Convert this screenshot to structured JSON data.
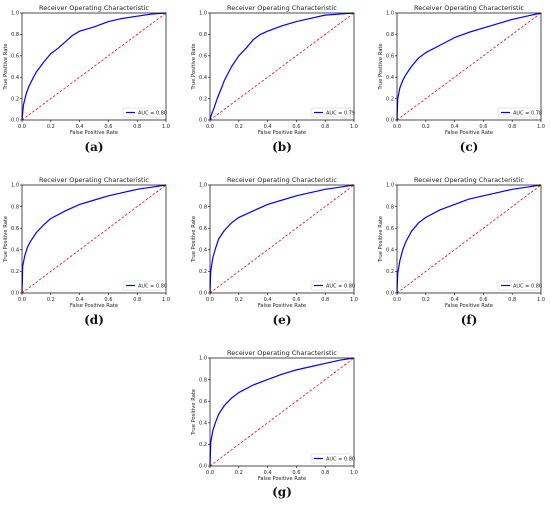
{
  "chart_data": [
    {
      "type": "line",
      "caption": "(a)",
      "title": "Receiver Operating Characteristic",
      "xlabel": "False Positive Rate",
      "ylabel": "True Positive Rate",
      "xlim": [
        0,
        1
      ],
      "ylim": [
        0,
        1
      ],
      "xticks": [
        "0.0",
        "0.2",
        "0.4",
        "0.6",
        "0.8",
        "1.0"
      ],
      "yticks": [
        "0.0",
        "0.2",
        "0.4",
        "0.6",
        "0.8",
        "1.0"
      ],
      "legend": "lower-right",
      "grid": false,
      "series": [
        {
          "name": "AUC = 0.80",
          "style": "solid",
          "color": "#0000ff",
          "x": [
            0,
            0.01,
            0.03,
            0.05,
            0.08,
            0.1,
            0.15,
            0.2,
            0.25,
            0.3,
            0.35,
            0.4,
            0.5,
            0.6,
            0.7,
            0.8,
            0.9,
            1.0
          ],
          "y": [
            0,
            0.14,
            0.25,
            0.32,
            0.4,
            0.45,
            0.54,
            0.62,
            0.67,
            0.73,
            0.79,
            0.83,
            0.87,
            0.92,
            0.95,
            0.97,
            0.99,
            1.0
          ]
        },
        {
          "name": "",
          "style": "dashed",
          "color": "#ff0000",
          "x": [
            0,
            1
          ],
          "y": [
            0,
            1
          ]
        }
      ]
    },
    {
      "type": "line",
      "caption": "(b)",
      "title": "Receiver Operating Characteristic",
      "xlabel": "False Positive Rate",
      "ylabel": "True Positive Rate",
      "xlim": [
        0,
        1
      ],
      "ylim": [
        0,
        1
      ],
      "xticks": [
        "0.0",
        "0.2",
        "0.4",
        "0.6",
        "0.8",
        "1.0"
      ],
      "yticks": [
        "0.0",
        "0.2",
        "0.4",
        "0.6",
        "0.8",
        "1.0"
      ],
      "legend": "lower-right",
      "grid": false,
      "series": [
        {
          "name": "AUC = 0.79",
          "style": "solid",
          "color": "#0000ff",
          "x": [
            0,
            0.01,
            0.03,
            0.05,
            0.08,
            0.1,
            0.15,
            0.2,
            0.25,
            0.3,
            0.35,
            0.4,
            0.5,
            0.6,
            0.7,
            0.8,
            0.9,
            1.0
          ],
          "y": [
            0,
            0.05,
            0.12,
            0.2,
            0.3,
            0.37,
            0.5,
            0.6,
            0.67,
            0.75,
            0.8,
            0.83,
            0.88,
            0.92,
            0.95,
            0.98,
            0.99,
            1.0
          ]
        },
        {
          "name": "",
          "style": "dashed",
          "color": "#ff0000",
          "x": [
            0,
            1
          ],
          "y": [
            0,
            1
          ]
        }
      ]
    },
    {
      "type": "line",
      "caption": "(c)",
      "title": "Receiver Operating Characteristic",
      "xlabel": "False Positive Rate",
      "ylabel": "True Positive Rate",
      "xlim": [
        0,
        1
      ],
      "ylim": [
        0,
        1
      ],
      "xticks": [
        "0.0",
        "0.2",
        "0.4",
        "0.6",
        "0.8",
        "1.0"
      ],
      "yticks": [
        "0.0",
        "0.2",
        "0.4",
        "0.6",
        "0.8",
        "1.0"
      ],
      "legend": "lower-right",
      "grid": false,
      "series": [
        {
          "name": "AUC = 0.78",
          "style": "solid",
          "color": "#0000ff",
          "x": [
            0,
            0.005,
            0.02,
            0.04,
            0.06,
            0.1,
            0.15,
            0.2,
            0.3,
            0.4,
            0.5,
            0.6,
            0.7,
            0.8,
            0.9,
            1.0
          ],
          "y": [
            0,
            0.2,
            0.3,
            0.37,
            0.42,
            0.5,
            0.58,
            0.63,
            0.7,
            0.77,
            0.82,
            0.86,
            0.9,
            0.94,
            0.97,
            1.0
          ]
        },
        {
          "name": "",
          "style": "dashed",
          "color": "#ff0000",
          "x": [
            0,
            1
          ],
          "y": [
            0,
            1
          ]
        }
      ]
    },
    {
      "type": "line",
      "caption": "(d)",
      "title": "Receiver Operating Characteristic",
      "xlabel": "False Positive Rate",
      "ylabel": "True Positive Rate",
      "xlim": [
        0,
        1
      ],
      "ylim": [
        0,
        1
      ],
      "xticks": [
        "0.0",
        "0.2",
        "0.4",
        "0.6",
        "0.8",
        "1.0"
      ],
      "yticks": [
        "0.0",
        "0.2",
        "0.4",
        "0.6",
        "0.8",
        "1.0"
      ],
      "legend": "lower-right",
      "grid": false,
      "series": [
        {
          "name": "AUC = 0.80",
          "style": "solid",
          "color": "#0000ff",
          "x": [
            0,
            0.005,
            0.02,
            0.04,
            0.06,
            0.1,
            0.15,
            0.2,
            0.3,
            0.4,
            0.5,
            0.6,
            0.7,
            0.8,
            0.9,
            1.0
          ],
          "y": [
            0,
            0.25,
            0.35,
            0.43,
            0.48,
            0.56,
            0.63,
            0.69,
            0.76,
            0.82,
            0.86,
            0.9,
            0.93,
            0.96,
            0.98,
            1.0
          ]
        },
        {
          "name": "",
          "style": "dashed",
          "color": "#ff0000",
          "x": [
            0,
            1
          ],
          "y": [
            0,
            1
          ]
        }
      ]
    },
    {
      "type": "line",
      "caption": "(e)",
      "title": "Receiver Operating Characteristic",
      "xlabel": "False Positive Rate",
      "ylabel": "True Positive Rate",
      "xlim": [
        0,
        1
      ],
      "ylim": [
        0,
        1
      ],
      "xticks": [
        "0.0",
        "0.2",
        "0.4",
        "0.6",
        "0.8",
        "1.0"
      ],
      "yticks": [
        "0.0",
        "0.2",
        "0.4",
        "0.6",
        "0.8",
        "1.0"
      ],
      "legend": "lower-right",
      "grid": false,
      "series": [
        {
          "name": "AUC = 0.80",
          "style": "solid",
          "color": "#0000ff",
          "x": [
            0,
            0.005,
            0.02,
            0.04,
            0.06,
            0.1,
            0.15,
            0.2,
            0.3,
            0.4,
            0.5,
            0.6,
            0.7,
            0.8,
            0.9,
            1.0
          ],
          "y": [
            0,
            0.2,
            0.33,
            0.42,
            0.5,
            0.58,
            0.65,
            0.7,
            0.76,
            0.82,
            0.86,
            0.9,
            0.93,
            0.96,
            0.98,
            1.0
          ]
        },
        {
          "name": "",
          "style": "dashed",
          "color": "#ff0000",
          "x": [
            0,
            1
          ],
          "y": [
            0,
            1
          ]
        }
      ]
    },
    {
      "type": "line",
      "caption": "(f)",
      "title": "Receiver Operating Characteristic",
      "xlabel": "False Positive Rate",
      "ylabel": "True Positive Rate",
      "xlim": [
        0,
        1
      ],
      "ylim": [
        0,
        1
      ],
      "xticks": [
        "0.0",
        "0.2",
        "0.4",
        "0.6",
        "0.8",
        "1.0"
      ],
      "yticks": [
        "0.0",
        "0.2",
        "0.4",
        "0.6",
        "0.8",
        "1.0"
      ],
      "legend": "lower-right",
      "grid": false,
      "series": [
        {
          "name": "AUC = 0.80",
          "style": "solid",
          "color": "#0000ff",
          "x": [
            0,
            0.005,
            0.02,
            0.04,
            0.06,
            0.1,
            0.15,
            0.2,
            0.3,
            0.4,
            0.5,
            0.6,
            0.7,
            0.8,
            0.9,
            1.0
          ],
          "y": [
            0,
            0.18,
            0.3,
            0.4,
            0.47,
            0.57,
            0.65,
            0.7,
            0.77,
            0.82,
            0.87,
            0.9,
            0.93,
            0.96,
            0.98,
            1.0
          ]
        },
        {
          "name": "",
          "style": "dashed",
          "color": "#ff0000",
          "x": [
            0,
            1
          ],
          "y": [
            0,
            1
          ]
        }
      ]
    },
    {
      "type": "line",
      "caption": "(g)",
      "title": "Receiver Operating Characteristic",
      "xlabel": "False Positive Rate",
      "ylabel": "True Positive Rate",
      "xlim": [
        0,
        1
      ],
      "ylim": [
        0,
        1
      ],
      "xticks": [
        "0.0",
        "0.2",
        "0.4",
        "0.6",
        "0.8",
        "1.0"
      ],
      "yticks": [
        "0.0",
        "0.2",
        "0.4",
        "0.6",
        "0.8",
        "1.0"
      ],
      "legend": "lower-right",
      "grid": false,
      "series": [
        {
          "name": "AUC = 0.80",
          "style": "solid",
          "color": "#0000ff",
          "x": [
            0,
            0.005,
            0.02,
            0.04,
            0.06,
            0.1,
            0.15,
            0.2,
            0.3,
            0.4,
            0.5,
            0.6,
            0.7,
            0.8,
            0.9,
            1.0
          ],
          "y": [
            0,
            0.22,
            0.33,
            0.41,
            0.48,
            0.56,
            0.63,
            0.68,
            0.75,
            0.8,
            0.85,
            0.89,
            0.92,
            0.95,
            0.98,
            1.0
          ]
        },
        {
          "name": "",
          "style": "dashed",
          "color": "#ff0000",
          "x": [
            0,
            1
          ],
          "y": [
            0,
            1
          ]
        }
      ]
    }
  ]
}
